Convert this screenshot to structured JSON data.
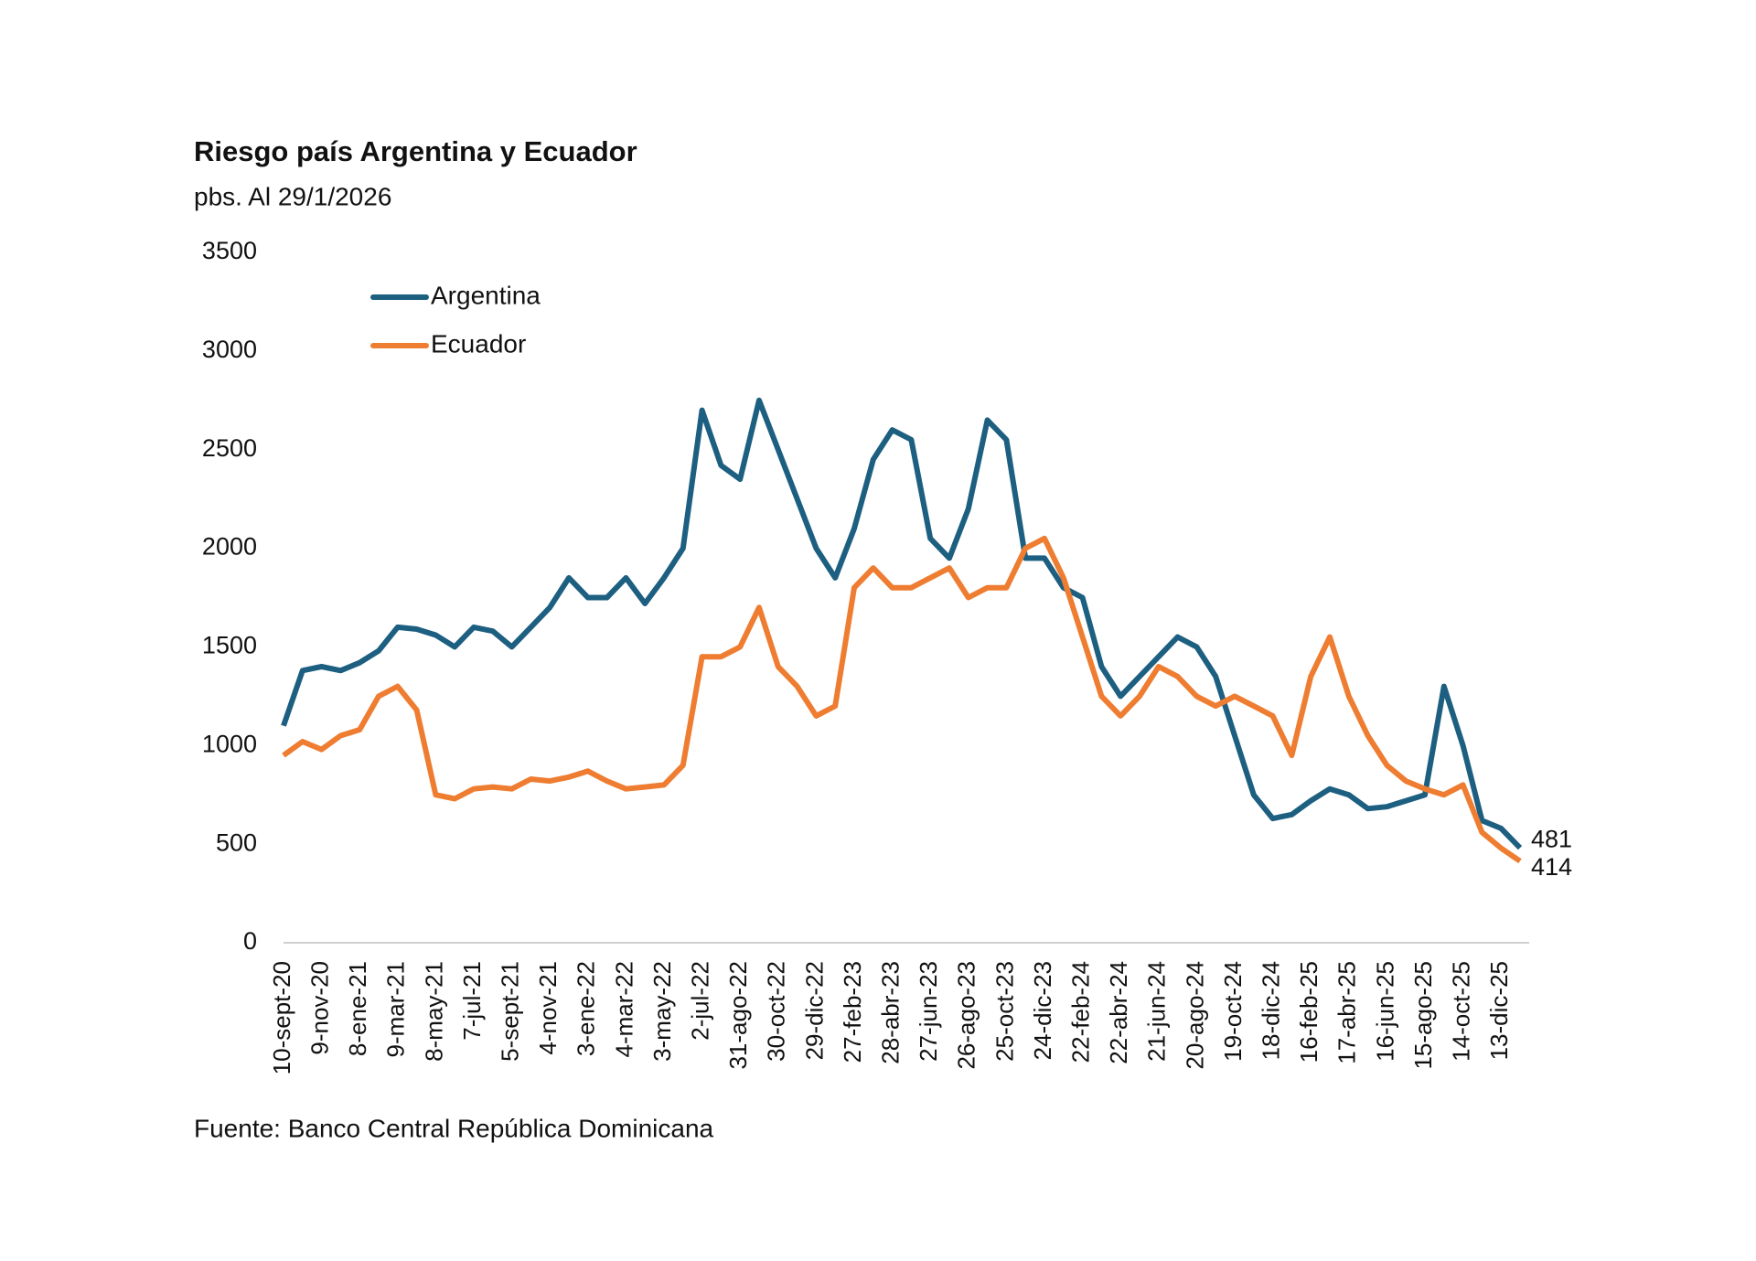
{
  "chart_data": {
    "type": "line",
    "title": "Riesgo país Argentina y Ecuador",
    "subtitle": "pbs. Al 29/1/2026",
    "source": "Fuente: Banco Central República Dominicana",
    "categories": [
      "10-sept-20",
      null,
      "9-nov-20",
      null,
      "8-ene-21",
      null,
      "9-mar-21",
      null,
      "8-may-21",
      null,
      "7-jul-21",
      null,
      "5-sept-21",
      null,
      "4-nov-21",
      null,
      "3-ene-22",
      null,
      "4-mar-22",
      null,
      "3-may-22",
      null,
      "2-jul-22",
      null,
      "31-ago-22",
      null,
      "30-oct-22",
      null,
      "29-dic-22",
      null,
      "27-feb-23",
      null,
      "28-abr-23",
      null,
      "27-jun-23",
      null,
      "26-ago-23",
      null,
      "25-oct-23",
      null,
      "24-dic-23",
      null,
      "22-feb-24",
      null,
      "22-abr-24",
      null,
      "21-jun-24",
      null,
      "20-ago-24",
      null,
      "19-oct-24",
      null,
      "18-dic-24",
      null,
      "16-feb-25",
      null,
      "17-abr-25",
      null,
      "16-jun-25",
      null,
      "15-ago-25",
      null,
      "14-oct-25",
      null,
      "13-dic-25",
      null
    ],
    "series": [
      {
        "name": "Argentina",
        "color": "#1d5f80",
        "values": [
          1100,
          1380,
          1400,
          1380,
          1420,
          1480,
          1600,
          1590,
          1560,
          1500,
          1600,
          1580,
          1500,
          1600,
          1700,
          1850,
          1750,
          1750,
          1850,
          1720,
          1850,
          2000,
          2700,
          2420,
          2350,
          2750,
          2500,
          2250,
          2000,
          1850,
          2100,
          2450,
          2600,
          2550,
          2050,
          1950,
          2200,
          2650,
          2550,
          1950,
          1950,
          1800,
          1750,
          1400,
          1250,
          1350,
          1450,
          1550,
          1500,
          1350,
          1050,
          750,
          630,
          650,
          720,
          780,
          750,
          680,
          690,
          720,
          750,
          1300,
          1000,
          620,
          580,
          481
        ]
      },
      {
        "name": "Ecuador",
        "color": "#ee7d31",
        "values": [
          950,
          1020,
          980,
          1050,
          1080,
          1250,
          1300,
          1180,
          750,
          730,
          780,
          790,
          780,
          830,
          820,
          840,
          870,
          820,
          780,
          790,
          800,
          900,
          1450,
          1450,
          1500,
          1700,
          1400,
          1300,
          1150,
          1200,
          1800,
          1900,
          1800,
          1800,
          1850,
          1900,
          1750,
          1800,
          1800,
          2000,
          2050,
          1850,
          1550,
          1250,
          1150,
          1250,
          1400,
          1350,
          1250,
          1200,
          1250,
          1200,
          1150,
          950,
          1350,
          1550,
          1250,
          1050,
          900,
          820,
          780,
          750,
          800,
          560,
          480,
          414
        ]
      }
    ],
    "ylim": [
      0,
      3500
    ],
    "yticks": [
      0,
      500,
      1000,
      1500,
      2000,
      2500,
      3000,
      3500
    ],
    "grid": false,
    "legend": "top-left"
  }
}
